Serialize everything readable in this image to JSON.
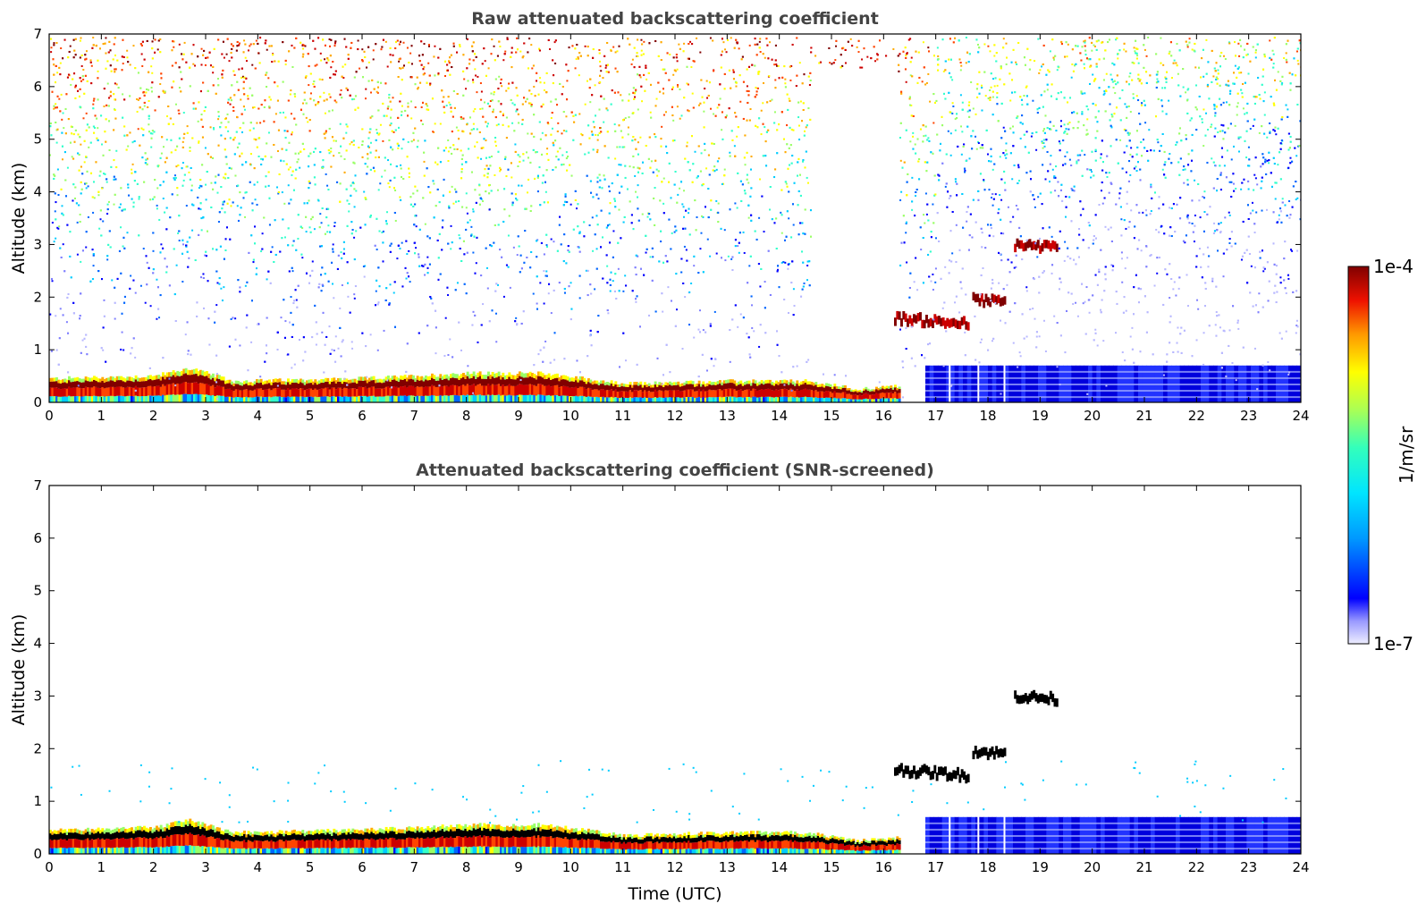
{
  "chart_data": [
    {
      "type": "heatmap",
      "title": "Raw attenuated backscattering coefficient",
      "xlabel": "",
      "ylabel": "Altitude (km)",
      "xlim": [
        0,
        24
      ],
      "ylim": [
        0,
        7
      ],
      "xticks": [
        "0",
        "1",
        "2",
        "3",
        "4",
        "5",
        "6",
        "7",
        "8",
        "9",
        "10",
        "11",
        "12",
        "13",
        "14",
        "15",
        "16",
        "17",
        "18",
        "19",
        "20",
        "21",
        "22",
        "23",
        "24"
      ],
      "yticks": [
        "0",
        "1",
        "2",
        "3",
        "4",
        "5",
        "6",
        "7"
      ],
      "features": {
        "boundary_layer_top_km": {
          "x": [
            0,
            2,
            2.7,
            3.5,
            6,
            8,
            9.5,
            11,
            13,
            14.5,
            15.5,
            16.2
          ],
          "y": [
            0.45,
            0.5,
            0.65,
            0.4,
            0.45,
            0.55,
            0.55,
            0.35,
            0.4,
            0.4,
            0.25,
            0.3
          ]
        },
        "cloud_layers": [
          {
            "x_start": 16.2,
            "x_end": 17.6,
            "y_km": 1.6
          },
          {
            "x_start": 17.7,
            "x_end": 18.3,
            "y_km": 1.95
          },
          {
            "x_start": 18.5,
            "x_end": 19.3,
            "y_km": 3.0
          }
        ],
        "low_level_dense_region": {
          "x_start": 16.8,
          "x_end": 24,
          "y_top_km": 0.7
        }
      }
    },
    {
      "type": "heatmap",
      "title": "Attenuated backscattering coefficient (SNR-screened)",
      "xlabel": "Time (UTC)",
      "ylabel": "Altitude (km)",
      "xlim": [
        0,
        24
      ],
      "ylim": [
        0,
        7
      ],
      "xticks": [
        "0",
        "1",
        "2",
        "3",
        "4",
        "5",
        "6",
        "7",
        "8",
        "9",
        "10",
        "11",
        "12",
        "13",
        "14",
        "15",
        "16",
        "17",
        "18",
        "19",
        "20",
        "21",
        "22",
        "23",
        "24"
      ],
      "yticks": [
        "0",
        "1",
        "2",
        "3",
        "4",
        "5",
        "6",
        "7"
      ]
    }
  ],
  "colorbar": {
    "max_label": "1e-4",
    "min_label": "1e-7",
    "unit_label": "1/m/sr",
    "scale": "log",
    "colors": [
      "#eeeeff",
      "#b8b8ff",
      "#7f7fff",
      "#0000ff",
      "#0066ff",
      "#00ccff",
      "#33ffcc",
      "#99ff66",
      "#ffff00",
      "#ffaa00",
      "#ff4400",
      "#cc0000",
      "#800000"
    ]
  }
}
